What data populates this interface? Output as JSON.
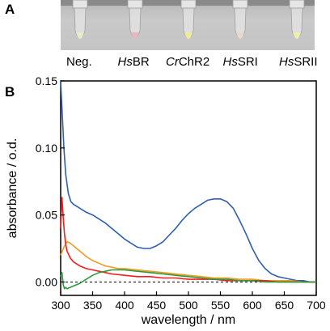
{
  "panels": {
    "a": "A",
    "b": "B"
  },
  "photo": {
    "samples": [
      {
        "italic": "",
        "plain": "Neg.",
        "tint": "#e9ecc9"
      },
      {
        "italic": "Hs",
        "plain": "BR",
        "tint": "#e6b7c4"
      },
      {
        "italic": "Cr",
        "plain": "ChR2",
        "tint": "#ecec9c"
      },
      {
        "italic": "Hs",
        "plain": "SRI",
        "tint": "#e9d8cf"
      },
      {
        "italic": "Hs",
        "plain": "SRII",
        "tint": "#ededb4"
      }
    ]
  },
  "chart_data": {
    "type": "line",
    "title": "",
    "xlabel": "wavelength / nm",
    "ylabel": "absorbance / o.d.",
    "xlim": [
      300,
      700
    ],
    "ylim": [
      -0.01,
      0.15
    ],
    "xticks": [
      300,
      350,
      400,
      450,
      500,
      550,
      600,
      650,
      700
    ],
    "yticks": [
      0.0,
      0.05,
      0.1,
      0.15
    ],
    "ytick_labels": [
      "0.00",
      "0.05",
      "0.10",
      "0.15"
    ],
    "baseline": 0,
    "grid": false,
    "legend": "none",
    "series": [
      {
        "color": "#2e5fb0",
        "x": [
          300,
          302,
          305,
          308,
          312,
          316,
          320,
          330,
          340,
          350,
          360,
          370,
          380,
          390,
          400,
          410,
          420,
          430,
          440,
          450,
          460,
          470,
          480,
          490,
          500,
          510,
          520,
          530,
          540,
          550,
          560,
          570,
          580,
          590,
          600,
          610,
          620,
          630,
          640,
          650,
          660,
          670,
          680,
          690,
          700
        ],
        "y": [
          0.15,
          0.13,
          0.1,
          0.08,
          0.066,
          0.06,
          0.058,
          0.055,
          0.052,
          0.05,
          0.047,
          0.044,
          0.04,
          0.036,
          0.032,
          0.029,
          0.026,
          0.025,
          0.025,
          0.027,
          0.03,
          0.035,
          0.04,
          0.046,
          0.051,
          0.055,
          0.058,
          0.061,
          0.062,
          0.062,
          0.06,
          0.055,
          0.046,
          0.036,
          0.025,
          0.016,
          0.01,
          0.006,
          0.004,
          0.003,
          0.002,
          0.001,
          0.001,
          0.0,
          0.0
        ]
      },
      {
        "color": "#f39a1e",
        "x": [
          300,
          305,
          310,
          315,
          320,
          330,
          340,
          350,
          360,
          370,
          380,
          390,
          400,
          420,
          440,
          460,
          480,
          500,
          520,
          540,
          560,
          580,
          600,
          620,
          640,
          660,
          680,
          700
        ],
        "y": [
          0.02,
          0.026,
          0.03,
          0.029,
          0.027,
          0.023,
          0.019,
          0.016,
          0.014,
          0.012,
          0.011,
          0.01,
          0.01,
          0.009,
          0.008,
          0.007,
          0.006,
          0.005,
          0.004,
          0.003,
          0.003,
          0.002,
          0.002,
          0.001,
          0.001,
          0.001,
          0.0,
          0.0
        ]
      },
      {
        "color": "#ff1a1a",
        "x": [
          300,
          302,
          304,
          306,
          308,
          310,
          315,
          320,
          330,
          340,
          350,
          360,
          370,
          380,
          400,
          420,
          440,
          460,
          480,
          500,
          520,
          540,
          560,
          580,
          600,
          620,
          640,
          660,
          680,
          700
        ],
        "y": [
          0.04,
          0.063,
          0.048,
          0.036,
          0.028,
          0.023,
          0.018,
          0.015,
          0.012,
          0.01,
          0.009,
          0.008,
          0.007,
          0.006,
          0.005,
          0.004,
          0.004,
          0.003,
          0.003,
          0.002,
          0.002,
          0.002,
          0.001,
          0.001,
          0.001,
          0.001,
          0.0,
          0.0,
          0.0,
          0.0
        ]
      },
      {
        "color": "#2a9a3c",
        "x": [
          300,
          302,
          304,
          306,
          308,
          310,
          315,
          320,
          330,
          340,
          350,
          360,
          370,
          380,
          390,
          400,
          420,
          440,
          460,
          480,
          500,
          520,
          540,
          560,
          580,
          600,
          620,
          640,
          660,
          680,
          700
        ],
        "y": [
          0.004,
          0.007,
          -0.002,
          -0.005,
          -0.004,
          -0.005,
          -0.004,
          -0.003,
          -0.001,
          0.002,
          0.005,
          0.007,
          0.008,
          0.009,
          0.009,
          0.009,
          0.008,
          0.007,
          0.006,
          0.005,
          0.004,
          0.003,
          0.002,
          0.002,
          0.001,
          0.001,
          0.0,
          0.0,
          0.0,
          0.0,
          0.0
        ]
      }
    ]
  }
}
